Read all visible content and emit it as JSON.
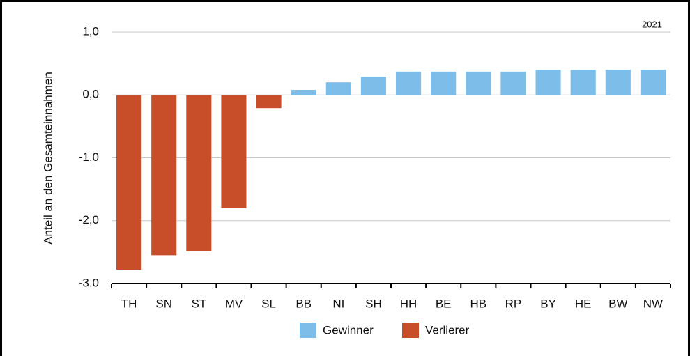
{
  "chart_data": {
    "type": "bar",
    "y_label": "Anteil an den Gesamteinnahmen",
    "annotation": "2021",
    "categories": [
      "TH",
      "SN",
      "ST",
      "MV",
      "SL",
      "BB",
      "NI",
      "SH",
      "HH",
      "BE",
      "HB",
      "RP",
      "BY",
      "HE",
      "BW",
      "NW"
    ],
    "series": [
      {
        "name": "Gewinner",
        "color": "#7dbdea",
        "values": [
          null,
          null,
          null,
          null,
          null,
          0.08,
          0.2,
          0.29,
          0.37,
          0.37,
          0.37,
          0.37,
          0.4,
          0.4,
          0.4,
          0.4
        ]
      },
      {
        "name": "Verlierer",
        "color": "#c84e29",
        "values": [
          -2.78,
          -2.55,
          -2.49,
          -1.8,
          -0.21,
          null,
          null,
          null,
          null,
          null,
          null,
          null,
          null,
          null,
          null,
          null
        ]
      }
    ],
    "ylim": [
      -3,
      1
    ],
    "yticks": [
      {
        "value": 1,
        "label": "1,0"
      },
      {
        "value": 0,
        "label": "0,0"
      },
      {
        "value": -1,
        "label": "-1,0"
      },
      {
        "value": -2,
        "label": "-2,0"
      },
      {
        "value": -3,
        "label": "-3,0"
      }
    ],
    "grid": true,
    "legend": "bottom"
  }
}
